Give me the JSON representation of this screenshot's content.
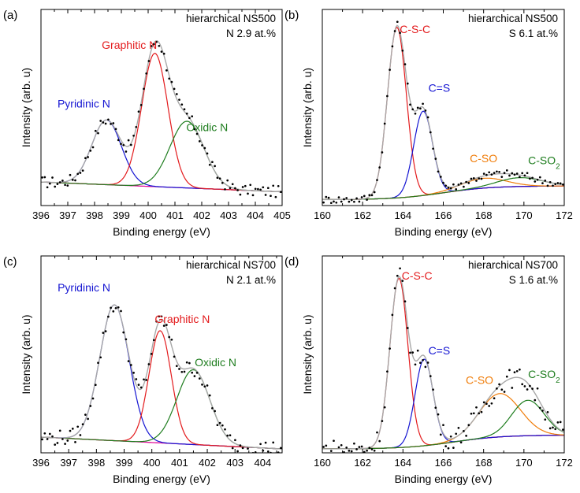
{
  "colors": {
    "red": "#e31a1c",
    "blue": "#1414d2",
    "green": "#1e7d1e",
    "orange": "#f07d0a",
    "magenta": "#e0129b",
    "envelope": "#a8a8a8",
    "points": "#000000"
  },
  "chart_data": [
    {
      "type": "line",
      "panel_label": "(a)",
      "title": "hierarchical NS500",
      "annotation": "N 2.9 at.%",
      "xlabel": "Binding energy (eV)",
      "ylabel": "Intensity (arb. u)",
      "xlim": [
        396,
        405
      ],
      "ylim": [
        0,
        1
      ],
      "xticks": [
        396,
        397,
        398,
        399,
        400,
        401,
        402,
        403,
        404,
        405
      ],
      "xtick_labels": [
        "396",
        "397",
        "398",
        "399",
        "400",
        "401",
        "402",
        "403",
        "404",
        "405"
      ],
      "background": {
        "type": "linear",
        "x": [
          396,
          405
        ],
        "y": [
          0.12,
          0.07
        ]
      },
      "peaks": [
        {
          "name": "Pyridinic N",
          "center": 398.45,
          "height": 0.33,
          "fwhm": 1.3,
          "color": "blue",
          "label_x": 397.6,
          "label_y": 0.5
        },
        {
          "name": "Graphitic N",
          "center": 400.25,
          "height": 0.68,
          "fwhm": 1.15,
          "color": "red",
          "label_x": 399.3,
          "label_y": 0.8
        },
        {
          "name": "Oxidic N",
          "center": 401.45,
          "height": 0.34,
          "fwhm": 1.5,
          "color": "green",
          "label_x": 402.2,
          "label_y": 0.38
        }
      ],
      "noise": 0.03
    },
    {
      "type": "line",
      "panel_label": "(b)",
      "title": "hierarchical NS500",
      "annotation": "S 6.1 at.%",
      "xlabel": "Binding energy (eV)",
      "ylabel": "Intensity (arb. u)",
      "xlim": [
        160,
        172
      ],
      "ylim": [
        0,
        1
      ],
      "xticks": [
        160,
        162,
        164,
        166,
        168,
        170,
        172
      ],
      "xtick_labels": [
        "160",
        "162",
        "164",
        "166",
        "168",
        "170",
        "172"
      ],
      "background": {
        "type": "step",
        "x": [
          160,
          172
        ],
        "y_low": 0.03,
        "y_high": 0.1,
        "center": 166
      },
      "peaks": [
        {
          "name": "C-S-C",
          "center": 163.7,
          "height": 0.87,
          "fwhm": 1.1,
          "color": "red",
          "label_x": 164.6,
          "label_y": 0.88
        },
        {
          "name": "C=S",
          "center": 165.0,
          "height": 0.43,
          "fwhm": 1.1,
          "color": "blue",
          "label_x": 165.8,
          "label_y": 0.58
        },
        {
          "name": "C-SO",
          "center": 168.0,
          "height": 0.05,
          "fwhm": 2.6,
          "color": "orange",
          "label_x": 168.0,
          "label_y": 0.22
        },
        {
          "name": "C-SO2",
          "center": 169.8,
          "height": 0.045,
          "fwhm": 2.6,
          "color": "green",
          "label_x": 171.0,
          "label_y": 0.21
        }
      ],
      "noise": 0.02
    },
    {
      "type": "line",
      "panel_label": "(c)",
      "title": "hierarchical NS700",
      "annotation": "N 2.1 at.%",
      "xlabel": "Binding energy (eV)",
      "ylabel": "Intensity (arb. u)",
      "xlim": [
        396,
        404.7
      ],
      "ylim": [
        0,
        1
      ],
      "xticks": [
        396,
        397,
        398,
        399,
        400,
        401,
        402,
        403,
        404
      ],
      "xtick_labels": [
        "396",
        "397",
        "398",
        "399",
        "400",
        "401",
        "402",
        "403",
        "404"
      ],
      "background": {
        "type": "linear",
        "x": [
          396,
          404.7
        ],
        "y": [
          0.08,
          0.02
        ]
      },
      "peaks": [
        {
          "name": "Pyridinic N",
          "center": 398.65,
          "height": 0.69,
          "fwhm": 1.25,
          "color": "blue",
          "label_x": 397.55,
          "label_y": 0.82
        },
        {
          "name": "Graphitic N",
          "center": 400.3,
          "height": 0.57,
          "fwhm": 0.95,
          "color": "red",
          "label_x": 401.1,
          "label_y": 0.66
        },
        {
          "name": "Oxidic N",
          "center": 401.5,
          "height": 0.38,
          "fwhm": 1.4,
          "color": "green",
          "label_x": 402.3,
          "label_y": 0.44
        }
      ],
      "noise": 0.04
    },
    {
      "type": "line",
      "panel_label": "(d)",
      "title": "hierarchical NS700",
      "annotation": "S 1.6 at.%",
      "xlabel": "Binding energy (eV)",
      "ylabel": "Intensity (arb. u)",
      "xlim": [
        160,
        172
      ],
      "ylim": [
        0,
        1
      ],
      "xticks": [
        160,
        162,
        164,
        166,
        168,
        170,
        172
      ],
      "xtick_labels": [
        "160",
        "162",
        "164",
        "166",
        "168",
        "170",
        "172"
      ],
      "background": {
        "type": "step",
        "x": [
          160,
          172
        ],
        "y_low": 0.02,
        "y_high": 0.09,
        "center": 166.5
      },
      "peaks": [
        {
          "name": "C-S-C",
          "center": 163.8,
          "height": 0.86,
          "fwhm": 1.05,
          "color": "red",
          "label_x": 164.7,
          "label_y": 0.88
        },
        {
          "name": "C=S",
          "center": 165.05,
          "height": 0.44,
          "fwhm": 1.05,
          "color": "blue",
          "label_x": 165.8,
          "label_y": 0.5
        },
        {
          "name": "C-SO",
          "center": 168.8,
          "height": 0.22,
          "fwhm": 2.4,
          "color": "orange",
          "label_x": 167.8,
          "label_y": 0.35
        },
        {
          "name": "C-SO2",
          "center": 170.2,
          "height": 0.18,
          "fwhm": 1.9,
          "color": "green",
          "label_x": 171.0,
          "label_y": 0.38
        }
      ],
      "noise": 0.05
    }
  ]
}
